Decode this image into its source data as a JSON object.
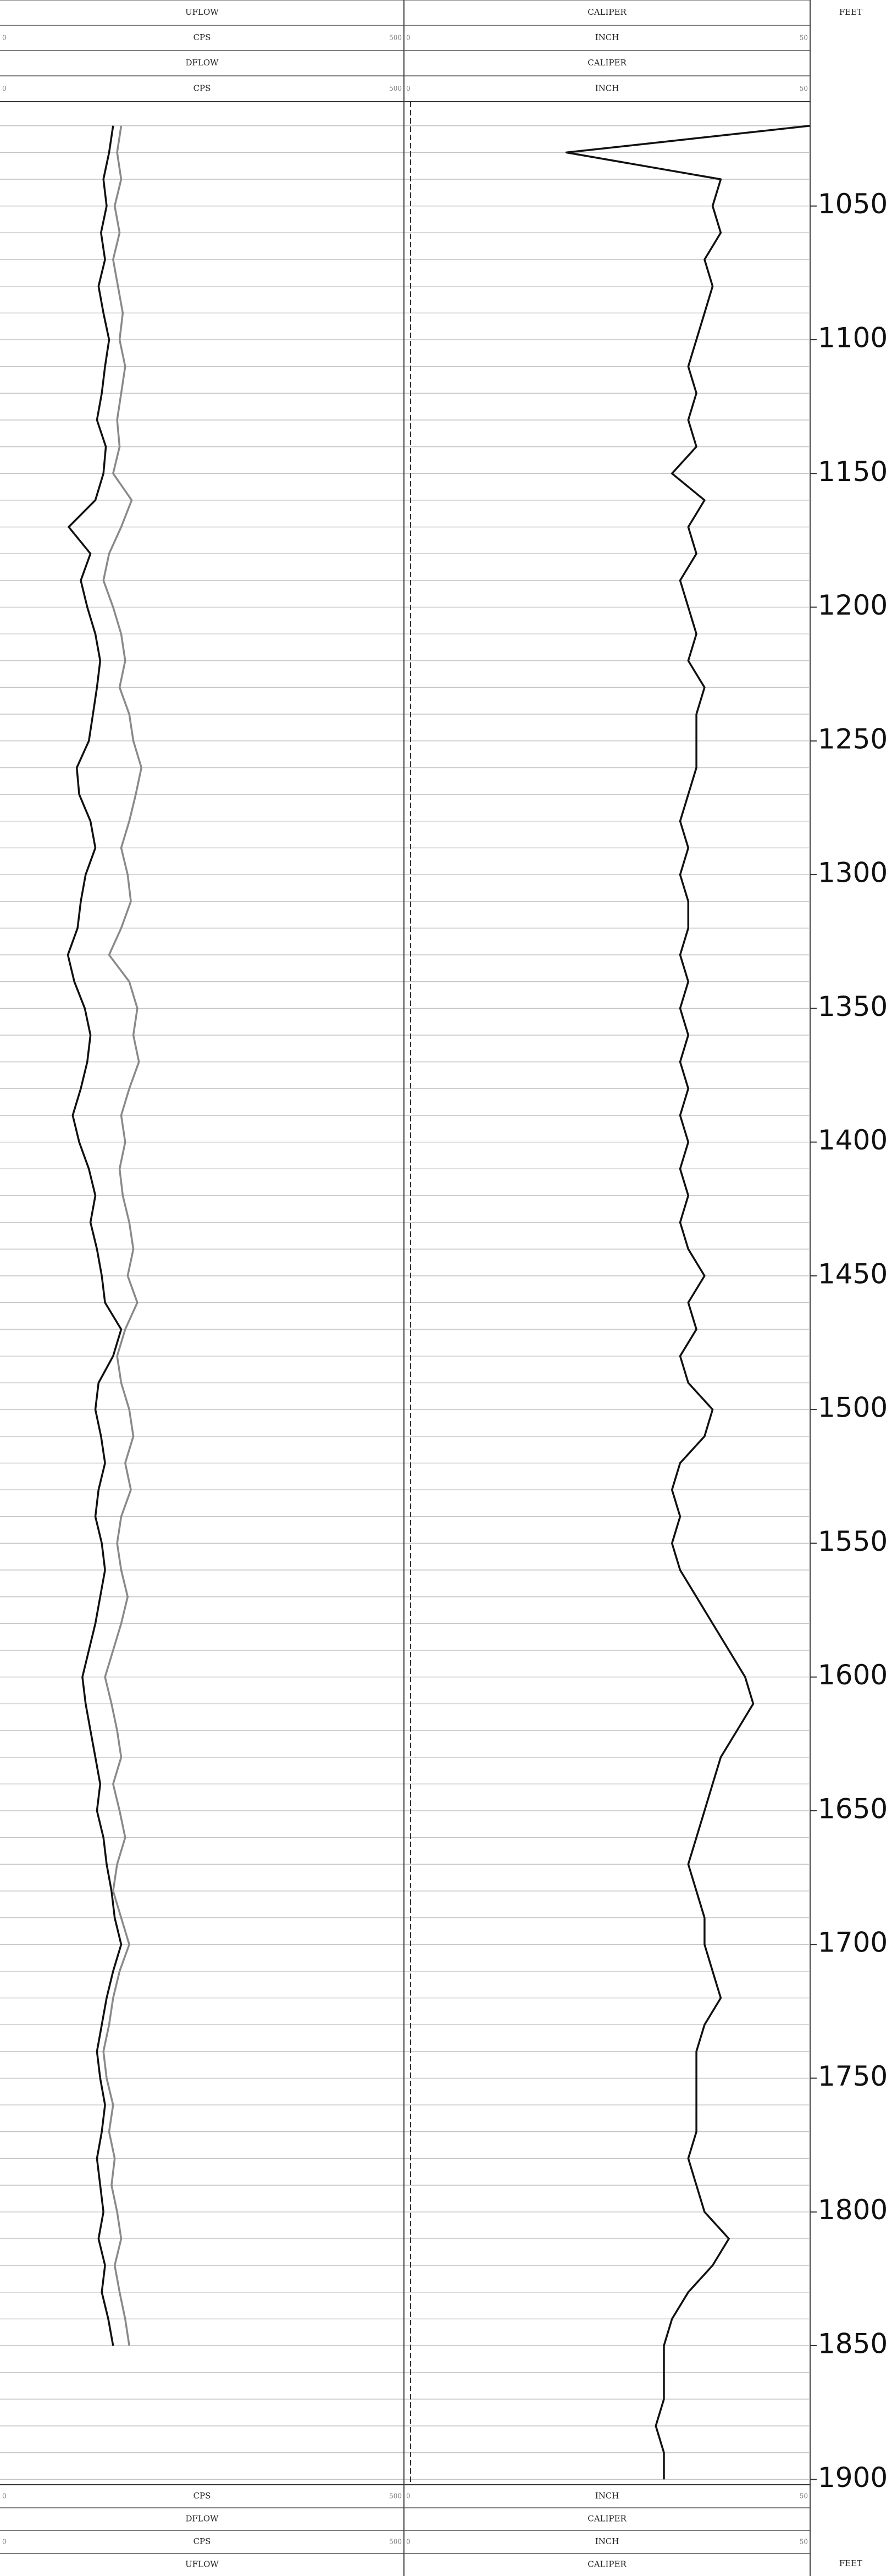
{
  "chart_data": {
    "type": "well-log",
    "depth_label": "FEET",
    "ylim": [
      1011,
      1902
    ],
    "yticks": [
      1050,
      1100,
      1150,
      1200,
      1250,
      1300,
      1350,
      1400,
      1450,
      1500,
      1550,
      1600,
      1650,
      1700,
      1750,
      1800,
      1850,
      1900
    ],
    "depth": [
      1020,
      1030,
      1040,
      1050,
      1060,
      1070,
      1080,
      1090,
      1100,
      1110,
      1120,
      1130,
      1140,
      1150,
      1160,
      1170,
      1180,
      1190,
      1200,
      1210,
      1220,
      1230,
      1240,
      1250,
      1260,
      1270,
      1280,
      1290,
      1300,
      1310,
      1320,
      1330,
      1340,
      1350,
      1360,
      1370,
      1380,
      1390,
      1400,
      1410,
      1420,
      1430,
      1440,
      1450,
      1460,
      1470,
      1480,
      1490,
      1500,
      1510,
      1520,
      1530,
      1540,
      1550,
      1560,
      1570,
      1580,
      1590,
      1600,
      1610,
      1620,
      1630,
      1640,
      1650,
      1660,
      1670,
      1680,
      1690,
      1700,
      1710,
      1720,
      1730,
      1740,
      1750,
      1760,
      1770,
      1780,
      1790,
      1800,
      1810,
      1820,
      1830,
      1840,
      1850,
      1860,
      1870,
      1880,
      1890,
      1900
    ],
    "tracks": [
      {
        "unit": "CPS",
        "xlim": [
          0,
          500
        ],
        "series": [
          {
            "name": "UFLOW",
            "color": "#111111",
            "values": [
              140,
              135,
              128,
              132,
              125,
              130,
              122,
              128,
              135,
              130,
              126,
              120,
              131,
              128,
              118,
              85,
              112,
              100,
              108,
              118,
              124,
              120,
              115,
              110,
              95,
              98,
              112,
              118,
              106,
              100,
              96,
              84,
              92,
              105,
              112,
              108,
              100,
              90,
              98,
              110,
              118,
              112,
              120,
              126,
              130,
              150,
              140,
              122,
              118,
              125,
              130,
              122,
              118,
              126,
              130,
              124,
              118,
              110,
              102,
              106,
              112,
              118,
              124,
              120,
              128,
              132,
              138,
              142,
              150,
              140,
              132,
              126,
              120,
              124,
              130,
              126,
              120,
              124,
              128,
              122,
              130,
              126,
              134,
              140,
              null,
              null,
              null,
              null,
              null
            ]
          },
          {
            "name": "DFLOW",
            "color": "#8a8a8a",
            "values": [
              150,
              145,
              150,
              142,
              148,
              140,
              146,
              152,
              148,
              155,
              150,
              145,
              148,
              140,
              163,
              150,
              135,
              128,
              140,
              150,
              155,
              148,
              160,
              165,
              175,
              168,
              160,
              150,
              158,
              162,
              150,
              135,
              160,
              170,
              165,
              172,
              160,
              150,
              155,
              148,
              152,
              160,
              165,
              158,
              170,
              155,
              145,
              150,
              160,
              165,
              155,
              162,
              150,
              145,
              150,
              158,
              150,
              140,
              130,
              138,
              145,
              150,
              140,
              148,
              155,
              145,
              140,
              150,
              160,
              148,
              140,
              135,
              128,
              132,
              140,
              135,
              142,
              138,
              145,
              150,
              142,
              148,
              155,
              160,
              null,
              null,
              null,
              null,
              null
            ]
          }
        ]
      },
      {
        "unit": "INCH",
        "xlim": [
          0,
          50
        ],
        "series": [
          {
            "name": "CALIPER",
            "color": "#111111",
            "values": [
              50,
              20,
              39,
              38,
              39,
              37,
              38,
              37,
              36,
              35,
              36,
              35,
              36,
              33,
              37,
              35,
              36,
              34,
              35,
              36,
              35,
              37,
              36,
              36,
              36,
              35,
              34,
              35,
              34,
              35,
              35,
              34,
              35,
              34,
              35,
              34,
              35,
              34,
              35,
              34,
              35,
              34,
              35,
              37,
              35,
              36,
              34,
              35,
              38,
              37,
              34,
              33,
              34,
              33,
              34,
              36,
              38,
              40,
              42,
              43,
              41,
              39,
              38,
              37,
              36,
              35,
              36,
              37,
              37,
              38,
              39,
              37,
              36,
              36,
              36,
              36,
              35,
              36,
              37,
              40,
              38,
              35,
              33,
              32,
              32,
              32,
              31,
              32,
              32
            ]
          }
        ]
      }
    ]
  }
}
